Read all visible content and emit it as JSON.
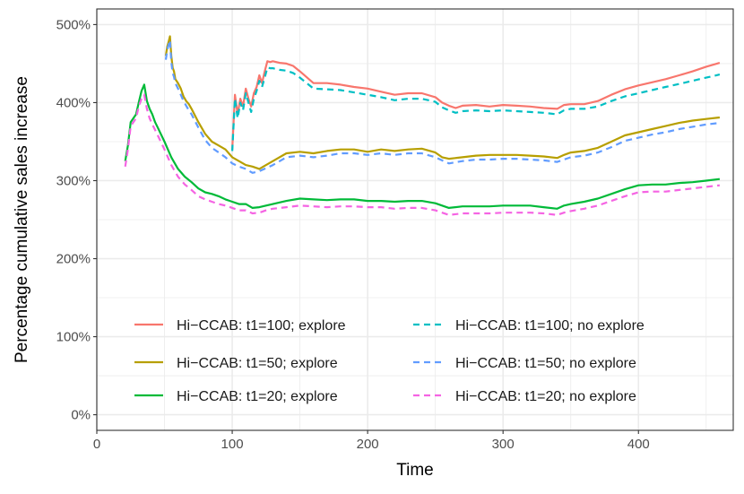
{
  "chart_data": {
    "type": "line",
    "title": "",
    "xlabel": "Time",
    "ylabel": "Percentage cumulative sales increase",
    "xlim": [
      0,
      470
    ],
    "ylim": [
      -20,
      520
    ],
    "xticks": [
      0,
      100,
      200,
      300,
      400
    ],
    "xtick_labels": [
      "0",
      "100",
      "200",
      "300",
      "400"
    ],
    "yticks": [
      0,
      100,
      200,
      300,
      400,
      500
    ],
    "ytick_labels": [
      "0%",
      "100%",
      "200%",
      "300%",
      "400%",
      "500%"
    ],
    "grid": true,
    "legend_position": "inside-bottom",
    "series": [
      {
        "name": "Hi−CCAB: t1=100; explore",
        "color": "#F8766D",
        "dash": "solid",
        "x": [
          100,
          102,
          104,
          106,
          108,
          110,
          112,
          114,
          116,
          118,
          120,
          122,
          124,
          126,
          128,
          130,
          135,
          140,
          145,
          150,
          160,
          170,
          180,
          190,
          200,
          210,
          220,
          230,
          240,
          250,
          255,
          260,
          265,
          270,
          280,
          290,
          300,
          310,
          320,
          330,
          340,
          345,
          350,
          360,
          370,
          380,
          390,
          400,
          410,
          420,
          430,
          440,
          450,
          460
        ],
        "y": [
          340,
          410,
          385,
          405,
          395,
          418,
          405,
          395,
          412,
          420,
          435,
          425,
          440,
          453,
          452,
          453,
          451,
          450,
          447,
          440,
          425,
          425,
          423,
          420,
          418,
          414,
          410,
          412,
          412,
          407,
          400,
          396,
          393,
          396,
          397,
          395,
          397,
          396,
          395,
          393,
          392,
          397,
          398,
          398,
          402,
          410,
          417,
          422,
          426,
          430,
          435,
          440,
          446,
          451
        ]
      },
      {
        "name": "Hi−CCAB: t1=50; explore",
        "color": "#B79F00",
        "dash": "solid",
        "x": [
          51,
          52,
          53,
          54,
          55,
          56,
          57,
          58,
          60,
          62,
          64,
          66,
          68,
          70,
          75,
          80,
          85,
          90,
          95,
          100,
          105,
          110,
          115,
          120,
          125,
          130,
          140,
          150,
          160,
          170,
          180,
          190,
          200,
          210,
          220,
          230,
          240,
          250,
          255,
          260,
          270,
          280,
          290,
          300,
          310,
          320,
          330,
          340,
          345,
          350,
          360,
          370,
          380,
          390,
          400,
          410,
          420,
          430,
          440,
          450,
          460
        ],
        "y": [
          460,
          472,
          478,
          485,
          460,
          445,
          440,
          430,
          425,
          418,
          408,
          402,
          398,
          392,
          375,
          360,
          350,
          345,
          340,
          330,
          325,
          320,
          318,
          315,
          320,
          325,
          335,
          337,
          335,
          338,
          340,
          340,
          337,
          340,
          338,
          340,
          341,
          336,
          330,
          328,
          330,
          332,
          333,
          333,
          333,
          332,
          331,
          329,
          333,
          336,
          338,
          342,
          350,
          358,
          362,
          366,
          370,
          374,
          377,
          379,
          381
        ]
      },
      {
        "name": "Hi−CCAB: t1=20; explore",
        "color": "#00BA38",
        "dash": "solid",
        "x": [
          21,
          23,
          25,
          27,
          29,
          31,
          33,
          35,
          37,
          39,
          41,
          43,
          45,
          50,
          55,
          60,
          65,
          70,
          75,
          80,
          85,
          90,
          95,
          100,
          105,
          110,
          115,
          120,
          125,
          130,
          140,
          150,
          160,
          170,
          180,
          190,
          200,
          210,
          220,
          230,
          240,
          250,
          255,
          260,
          270,
          280,
          290,
          300,
          310,
          320,
          330,
          340,
          345,
          350,
          360,
          370,
          380,
          390,
          400,
          410,
          420,
          430,
          440,
          450,
          460
        ],
        "y": [
          325,
          345,
          375,
          380,
          385,
          400,
          415,
          423,
          402,
          392,
          385,
          375,
          368,
          350,
          330,
          315,
          305,
          298,
          290,
          285,
          283,
          280,
          276,
          273,
          270,
          270,
          265,
          266,
          268,
          270,
          274,
          277,
          276,
          275,
          276,
          276,
          274,
          274,
          273,
          274,
          274,
          271,
          268,
          265,
          267,
          267,
          267,
          268,
          268,
          268,
          266,
          264,
          268,
          270,
          273,
          277,
          283,
          289,
          294,
          295,
          295,
          297,
          298,
          300,
          302
        ]
      },
      {
        "name": "Hi−CCAB: t1=100; no explore",
        "color": "#00BFC4",
        "dash": "dashed",
        "x": [
          100,
          102,
          104,
          106,
          108,
          110,
          112,
          114,
          116,
          118,
          120,
          122,
          124,
          126,
          128,
          130,
          135,
          140,
          145,
          150,
          160,
          170,
          180,
          190,
          200,
          210,
          220,
          230,
          240,
          250,
          255,
          260,
          265,
          270,
          280,
          290,
          300,
          310,
          320,
          330,
          340,
          345,
          350,
          360,
          370,
          380,
          390,
          400,
          410,
          420,
          430,
          440,
          450,
          460
        ],
        "y": [
          338,
          405,
          380,
          400,
          390,
          412,
          400,
          388,
          405,
          415,
          428,
          420,
          432,
          445,
          444,
          444,
          442,
          441,
          438,
          432,
          418,
          417,
          416,
          413,
          410,
          407,
          403,
          405,
          405,
          401,
          394,
          390,
          387,
          389,
          390,
          389,
          390,
          389,
          388,
          387,
          385,
          390,
          392,
          392,
          395,
          402,
          408,
          412,
          416,
          420,
          424,
          428,
          432,
          436
        ]
      },
      {
        "name": "Hi−CCAB: t1=50; no explore",
        "color": "#619CFF",
        "dash": "dashed",
        "x": [
          51,
          52,
          53,
          54,
          55,
          56,
          57,
          58,
          60,
          62,
          64,
          66,
          68,
          70,
          75,
          80,
          85,
          90,
          95,
          100,
          105,
          110,
          115,
          120,
          125,
          130,
          140,
          150,
          160,
          170,
          180,
          190,
          200,
          210,
          220,
          230,
          240,
          250,
          255,
          260,
          270,
          280,
          290,
          300,
          310,
          320,
          330,
          340,
          345,
          350,
          360,
          370,
          380,
          390,
          400,
          410,
          420,
          430,
          440,
          450,
          460
        ],
        "y": [
          455,
          468,
          474,
          480,
          452,
          438,
          433,
          425,
          418,
          410,
          402,
          396,
          390,
          385,
          368,
          352,
          342,
          336,
          330,
          322,
          318,
          315,
          310,
          312,
          316,
          320,
          330,
          332,
          330,
          332,
          335,
          335,
          333,
          335,
          333,
          335,
          335,
          330,
          326,
          322,
          325,
          327,
          327,
          328,
          328,
          327,
          326,
          324,
          327,
          330,
          332,
          336,
          343,
          351,
          355,
          359,
          362,
          366,
          369,
          372,
          374
        ]
      },
      {
        "name": "Hi−CCAB: t1=20; no explore",
        "color": "#F564E3",
        "dash": "dashed",
        "x": [
          21,
          23,
          25,
          27,
          29,
          31,
          33,
          35,
          37,
          39,
          41,
          43,
          45,
          50,
          55,
          60,
          65,
          70,
          75,
          80,
          85,
          90,
          95,
          100,
          105,
          110,
          115,
          120,
          125,
          130,
          140,
          150,
          160,
          170,
          180,
          190,
          200,
          210,
          220,
          230,
          240,
          250,
          255,
          260,
          270,
          280,
          290,
          300,
          310,
          320,
          330,
          340,
          345,
          350,
          360,
          370,
          380,
          390,
          400,
          410,
          420,
          430,
          440,
          450,
          460
        ],
        "y": [
          318,
          340,
          370,
          375,
          380,
          395,
          405,
          410,
          392,
          380,
          372,
          365,
          358,
          340,
          320,
          305,
          295,
          288,
          280,
          276,
          273,
          270,
          268,
          265,
          262,
          262,
          258,
          259,
          262,
          264,
          266,
          268,
          267,
          266,
          267,
          267,
          266,
          266,
          264,
          265,
          265,
          262,
          259,
          256,
          258,
          258,
          258,
          259,
          259,
          259,
          258,
          256,
          259,
          261,
          264,
          268,
          274,
          280,
          285,
          286,
          286,
          288,
          290,
          292,
          294
        ]
      }
    ]
  }
}
